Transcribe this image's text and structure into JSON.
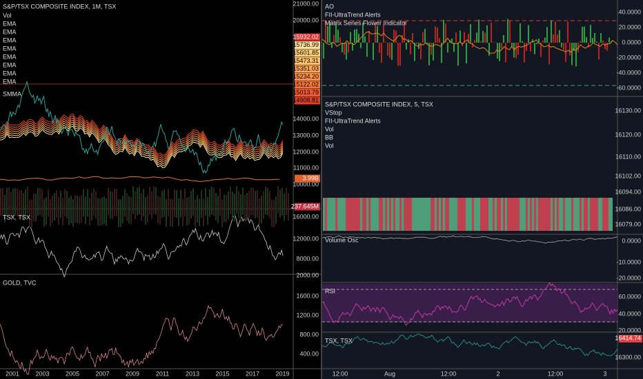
{
  "left": {
    "main": {
      "title": "S&P/TSX COMPOSITE INDEX, 1M, TSX",
      "indicators": [
        "Vol",
        "EMA",
        "EMA",
        "EMA",
        "EMA",
        "EMA",
        "EMA",
        "EMA",
        "EMA",
        "SMMA"
      ],
      "axis": [
        "21000.00",
        "20000.00",
        "14000.00",
        "13000.00",
        "12000.00",
        "11000.00",
        "10000.00"
      ],
      "price_tags": [
        "15932.02",
        "15736.99",
        "15601.85",
        "15473.31",
        "15351.03",
        "15234.20",
        "15122.02",
        "15013.79",
        "14908.81"
      ],
      "volume_tags": [
        "3.99B",
        "237.645M"
      ]
    },
    "tsx": {
      "title": "TSX, TSX",
      "axis": [
        "16000.00",
        "12000.00",
        "8000.00"
      ]
    },
    "gold": {
      "title": "GOLD, TVC",
      "axis": [
        "2000.00",
        "1600.00",
        "1200.00",
        "800.00",
        "400.00"
      ]
    },
    "time_axis": [
      "2001",
      "2003",
      "2005",
      "2007",
      "2009",
      "2011",
      "2013",
      "2015",
      "2017",
      "2019"
    ]
  },
  "right": {
    "ao": {
      "indicators": [
        "AO",
        "FII-UltraTrend Alerts",
        "Matrix Series Flower Indicator"
      ],
      "axis": [
        "40.0000",
        "20.0000",
        "0.0000",
        "-20.0000",
        "-40.0000",
        "-60.0000"
      ]
    },
    "main": {
      "title": "S&P/TSX COMPOSITE INDEX, 5, TSX",
      "indicators": [
        "VStop",
        "FII-UltraTrend Alerts",
        "Vol",
        "BB",
        "Vol"
      ],
      "axis": [
        "16130.00",
        "16120.00",
        "16110.00",
        "16102.00",
        "16094.00",
        "16086.00",
        "16079.00"
      ]
    },
    "volume_osc": {
      "title": "Volume Osc",
      "axis": [
        "0.0000",
        "-10.0000",
        "-20.0000"
      ]
    },
    "rsi": {
      "title": "RSI",
      "axis": [
        "60.0000",
        "40.0000",
        "20.0000"
      ]
    },
    "tsx": {
      "title": "TSX, TSX",
      "price_tag": "16414.74",
      "axis": [
        "16300.00"
      ]
    },
    "time_axis": [
      "12:00",
      "Aug",
      "12:00",
      "2",
      "12:00",
      "3"
    ]
  }
}
